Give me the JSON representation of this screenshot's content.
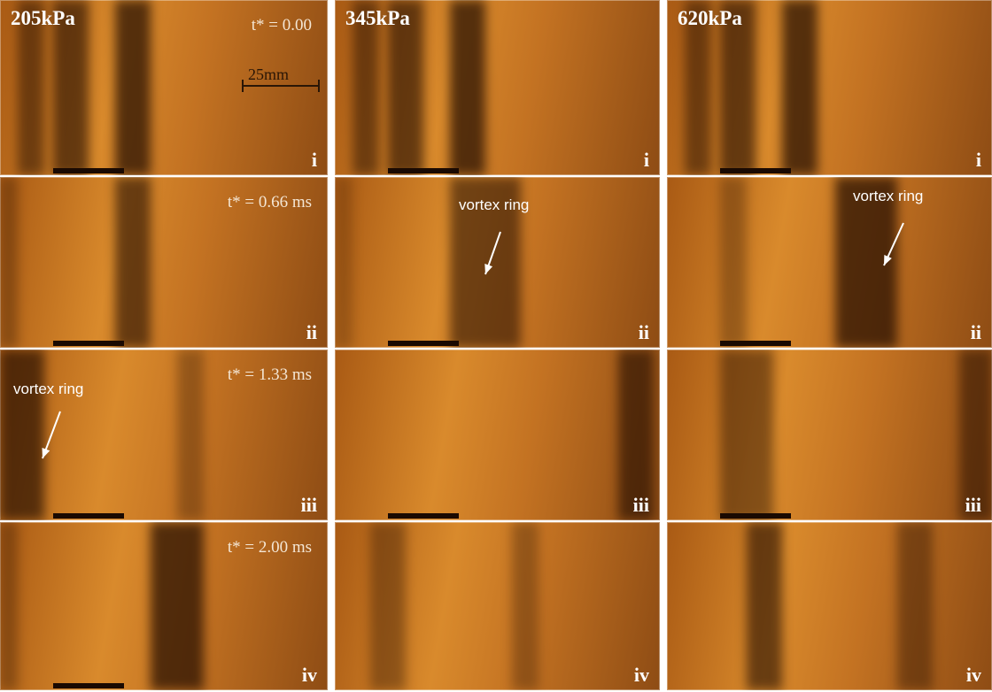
{
  "columns": [
    {
      "pressure": "205kPa"
    },
    {
      "pressure": "345kPa"
    },
    {
      "pressure": "620kPa"
    }
  ],
  "time_labels": [
    "t* = 0.00",
    "t* = 0.66 ms",
    "t* = 1.33 ms",
    "t* = 2.00 ms"
  ],
  "row_labels": [
    "i",
    "ii",
    "iii",
    "iv"
  ],
  "scale_bar": "25mm",
  "annotations": [
    {
      "text": "vortex ring"
    },
    {
      "text": "vortex ring"
    },
    {
      "text": "vortex ring"
    }
  ]
}
